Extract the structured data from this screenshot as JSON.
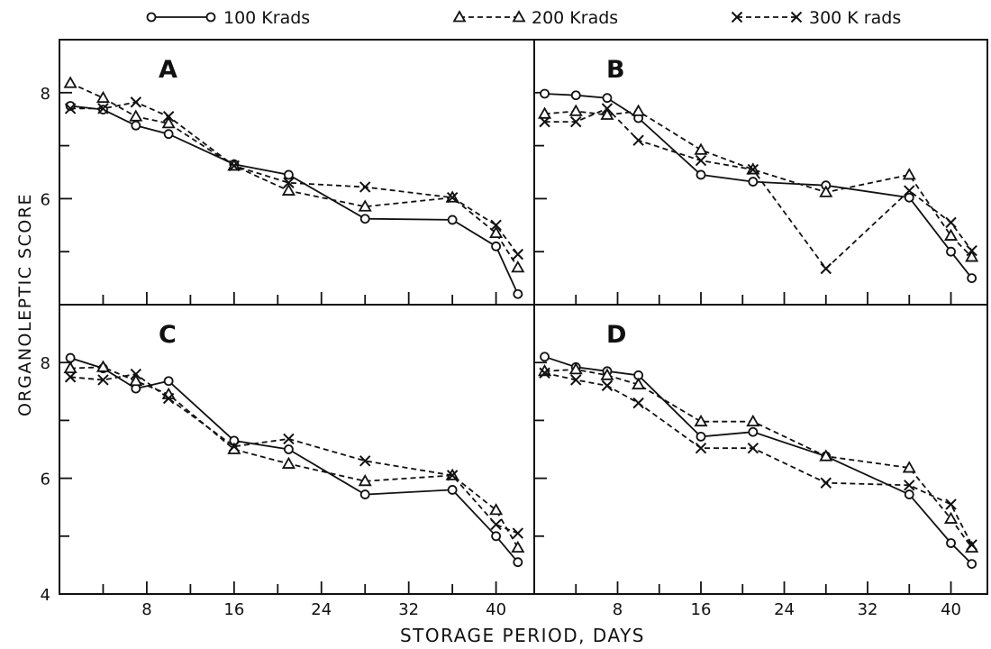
{
  "chart_data": {
    "type": "line",
    "xlabel": "STORAGE PERIOD, DAYS",
    "ylabel": "ORGANOLEPTIC SCORE",
    "xlim": [
      0,
      43.5
    ],
    "ylim": [
      4,
      9
    ],
    "x_ticks": [
      8,
      16,
      24,
      32,
      40
    ],
    "y_ticks": [
      4,
      6,
      8
    ],
    "legend_position": "top",
    "legend": [
      {
        "key": "k100",
        "label": "100 Krads",
        "marker": "circle",
        "dash": "solid"
      },
      {
        "key": "k200",
        "label": "200 Krads",
        "marker": "triangle",
        "dash": "dashed"
      },
      {
        "key": "k300",
        "label": "300 K rads",
        "marker": "cross",
        "dash": "dashed"
      }
    ],
    "panels": [
      {
        "label": "A",
        "series": [
          {
            "key": "k100",
            "points": [
              [
                1,
                7.75
              ],
              [
                4,
                7.68
              ],
              [
                7,
                7.38
              ],
              [
                10,
                7.22
              ],
              [
                16,
                6.65
              ],
              [
                21,
                6.45
              ],
              [
                28,
                5.62
              ],
              [
                36,
                5.6
              ],
              [
                40,
                5.1
              ],
              [
                42,
                4.2
              ]
            ]
          },
          {
            "key": "k200",
            "points": [
              [
                1,
                8.18
              ],
              [
                4,
                7.9
              ],
              [
                7,
                7.55
              ],
              [
                10,
                7.42
              ],
              [
                16,
                6.62
              ],
              [
                21,
                6.15
              ],
              [
                28,
                5.85
              ],
              [
                36,
                6.02
              ],
              [
                40,
                5.35
              ],
              [
                42,
                4.7
              ]
            ]
          },
          {
            "key": "k300",
            "points": [
              [
                1,
                7.7
              ],
              [
                4,
                7.7
              ],
              [
                7,
                7.82
              ],
              [
                10,
                7.55
              ],
              [
                16,
                6.62
              ],
              [
                21,
                6.3
              ],
              [
                28,
                6.22
              ],
              [
                36,
                6.02
              ],
              [
                40,
                5.5
              ],
              [
                42,
                4.95
              ]
            ]
          }
        ]
      },
      {
        "label": "B",
        "series": [
          {
            "key": "k100",
            "points": [
              [
                1,
                7.98
              ],
              [
                4,
                7.95
              ],
              [
                7,
                7.9
              ],
              [
                10,
                7.52
              ],
              [
                16,
                6.45
              ],
              [
                21,
                6.32
              ],
              [
                28,
                6.25
              ],
              [
                36,
                6.02
              ],
              [
                40,
                5.0
              ],
              [
                42,
                4.5
              ]
            ]
          },
          {
            "key": "k200",
            "points": [
              [
                1,
                7.6
              ],
              [
                4,
                7.65
              ],
              [
                7,
                7.58
              ],
              [
                10,
                7.65
              ],
              [
                16,
                6.92
              ],
              [
                21,
                6.55
              ],
              [
                28,
                6.12
              ],
              [
                36,
                6.45
              ],
              [
                40,
                5.3
              ],
              [
                42,
                4.9
              ]
            ]
          },
          {
            "key": "k300",
            "points": [
              [
                1,
                7.45
              ],
              [
                4,
                7.45
              ],
              [
                7,
                7.7
              ],
              [
                10,
                7.1
              ],
              [
                16,
                6.72
              ],
              [
                21,
                6.55
              ],
              [
                28,
                4.68
              ],
              [
                36,
                6.15
              ],
              [
                40,
                5.55
              ],
              [
                42,
                5.02
              ]
            ]
          }
        ]
      },
      {
        "label": "C",
        "series": [
          {
            "key": "k100",
            "points": [
              [
                1,
                8.08
              ],
              [
                4,
                7.9
              ],
              [
                7,
                7.55
              ],
              [
                10,
                7.68
              ],
              [
                16,
                6.65
              ],
              [
                21,
                6.5
              ],
              [
                28,
                5.72
              ],
              [
                36,
                5.8
              ],
              [
                40,
                5.0
              ],
              [
                42,
                4.55
              ]
            ]
          },
          {
            "key": "k200",
            "points": [
              [
                1,
                7.9
              ],
              [
                4,
                7.92
              ],
              [
                7,
                7.68
              ],
              [
                10,
                7.45
              ],
              [
                16,
                6.5
              ],
              [
                21,
                6.25
              ],
              [
                28,
                5.95
              ],
              [
                36,
                6.05
              ],
              [
                40,
                5.45
              ],
              [
                42,
                4.8
              ]
            ]
          },
          {
            "key": "k300",
            "points": [
              [
                1,
                7.75
              ],
              [
                4,
                7.7
              ],
              [
                7,
                7.8
              ],
              [
                10,
                7.38
              ],
              [
                16,
                6.55
              ],
              [
                21,
                6.68
              ],
              [
                28,
                6.3
              ],
              [
                36,
                6.05
              ],
              [
                40,
                5.2
              ],
              [
                42,
                5.05
              ]
            ]
          }
        ]
      },
      {
        "label": "D",
        "series": [
          {
            "key": "k100",
            "points": [
              [
                1,
                8.1
              ],
              [
                4,
                7.92
              ],
              [
                7,
                7.85
              ],
              [
                10,
                7.78
              ],
              [
                16,
                6.72
              ],
              [
                21,
                6.8
              ],
              [
                28,
                6.38
              ],
              [
                36,
                5.72
              ],
              [
                40,
                4.88
              ],
              [
                42,
                4.52
              ]
            ]
          },
          {
            "key": "k200",
            "points": [
              [
                1,
                7.85
              ],
              [
                4,
                7.88
              ],
              [
                7,
                7.78
              ],
              [
                10,
                7.62
              ],
              [
                16,
                6.98
              ],
              [
                21,
                6.98
              ],
              [
                28,
                6.38
              ],
              [
                36,
                6.18
              ],
              [
                40,
                5.3
              ],
              [
                42,
                4.8
              ]
            ]
          },
          {
            "key": "k300",
            "points": [
              [
                1,
                7.82
              ],
              [
                4,
                7.7
              ],
              [
                7,
                7.6
              ],
              [
                10,
                7.3
              ],
              [
                16,
                6.52
              ],
              [
                21,
                6.52
              ],
              [
                28,
                5.92
              ],
              [
                36,
                5.88
              ],
              [
                40,
                5.55
              ],
              [
                42,
                4.85
              ]
            ]
          }
        ]
      }
    ]
  }
}
